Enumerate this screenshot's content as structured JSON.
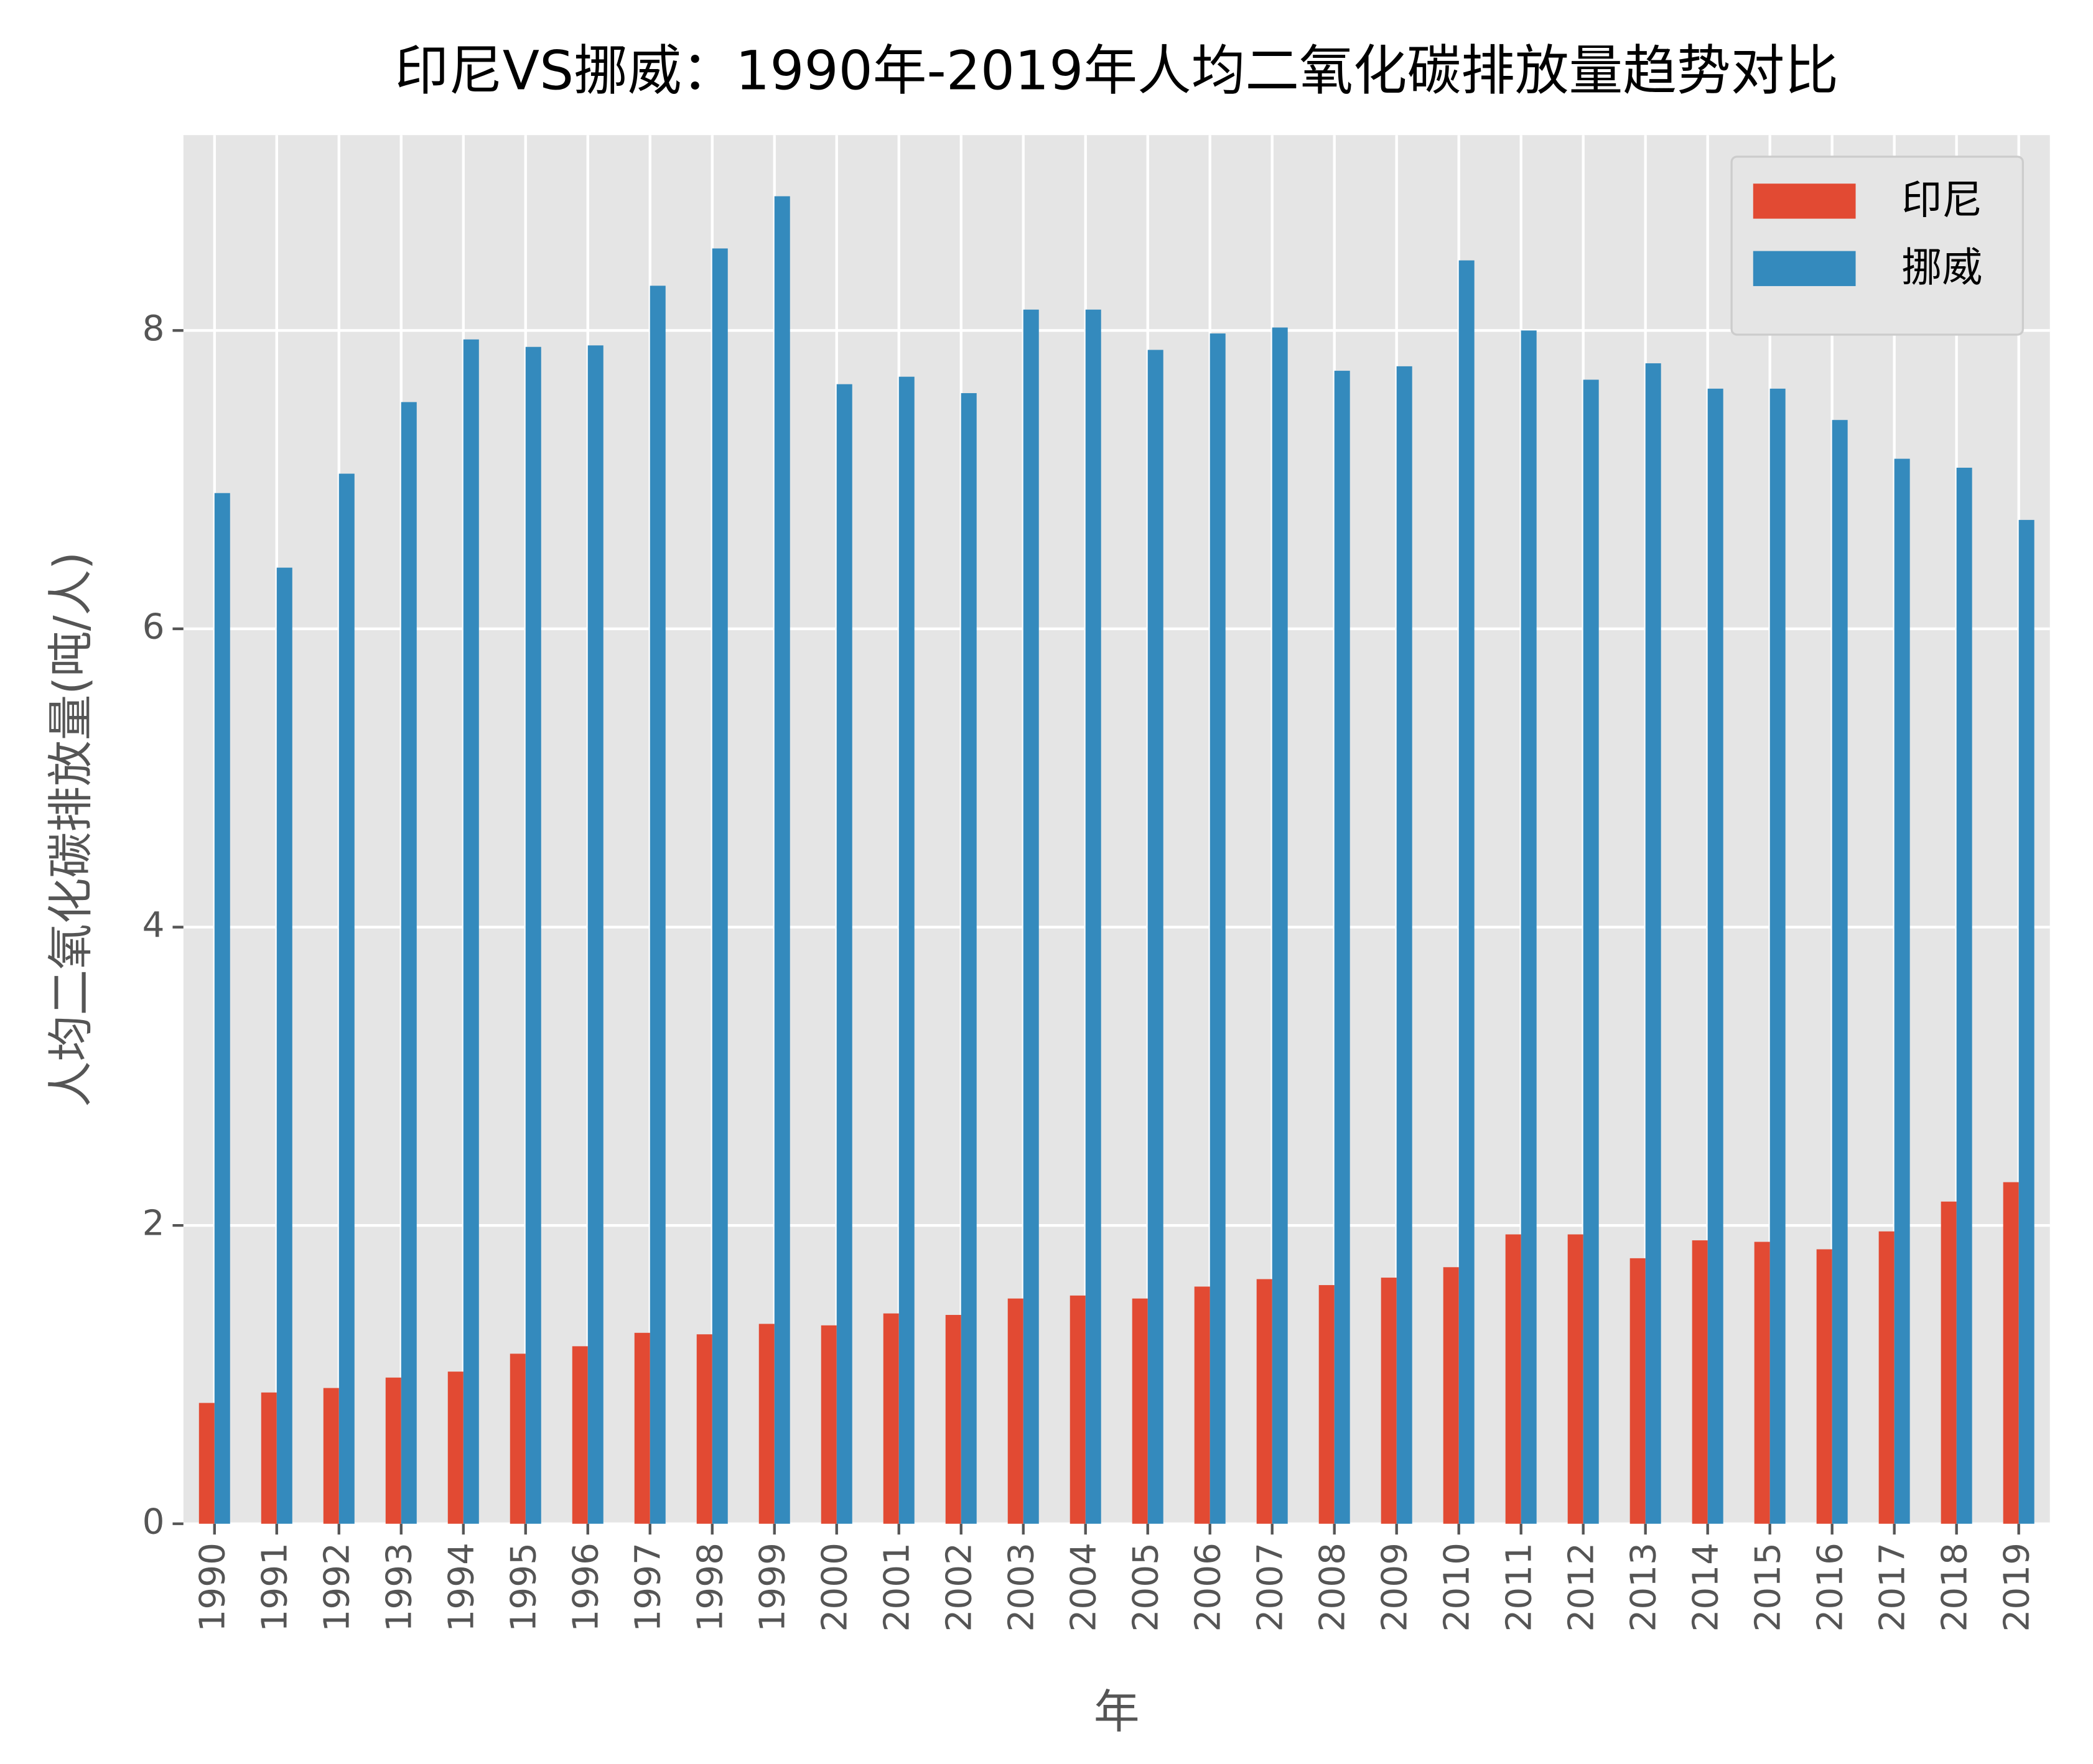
{
  "chart_data": {
    "type": "bar",
    "title": "印尼VS挪威：1990年-2019年人均二氧化碳排放量趋势对比",
    "x_label": "年",
    "y_label": "人均二氧化碳排放量(吨/人)",
    "categories": [
      "1990",
      "1991",
      "1992",
      "1993",
      "1994",
      "1995",
      "1996",
      "1997",
      "1998",
      "1999",
      "2000",
      "2001",
      "2002",
      "2003",
      "2004",
      "2005",
      "2006",
      "2007",
      "2008",
      "2009",
      "2010",
      "2011",
      "2012",
      "2013",
      "2014",
      "2015",
      "2016",
      "2017",
      "2018",
      "2019"
    ],
    "series": [
      {
        "name": "印尼",
        "color": "#e24a33",
        "values": [
          0.81,
          0.88,
          0.91,
          0.98,
          1.02,
          1.14,
          1.19,
          1.28,
          1.27,
          1.34,
          1.33,
          1.41,
          1.4,
          1.51,
          1.53,
          1.51,
          1.59,
          1.64,
          1.6,
          1.65,
          1.72,
          1.94,
          1.94,
          1.78,
          1.9,
          1.89,
          1.84,
          1.96,
          2.16,
          2.29
        ]
      },
      {
        "name": "挪威",
        "color": "#348abd",
        "values": [
          6.91,
          6.41,
          7.04,
          7.52,
          7.94,
          7.89,
          7.9,
          8.3,
          8.55,
          8.9,
          7.64,
          7.69,
          7.58,
          8.14,
          8.14,
          7.87,
          7.98,
          8.02,
          7.73,
          7.76,
          8.47,
          8.0,
          7.67,
          7.78,
          7.61,
          7.61,
          7.4,
          7.14,
          7.08,
          6.73
        ]
      }
    ],
    "ylim": [
      0,
      9.31
    ],
    "yticks": [
      0,
      2,
      4,
      6,
      8
    ],
    "grid": true,
    "legend": "upper right"
  }
}
